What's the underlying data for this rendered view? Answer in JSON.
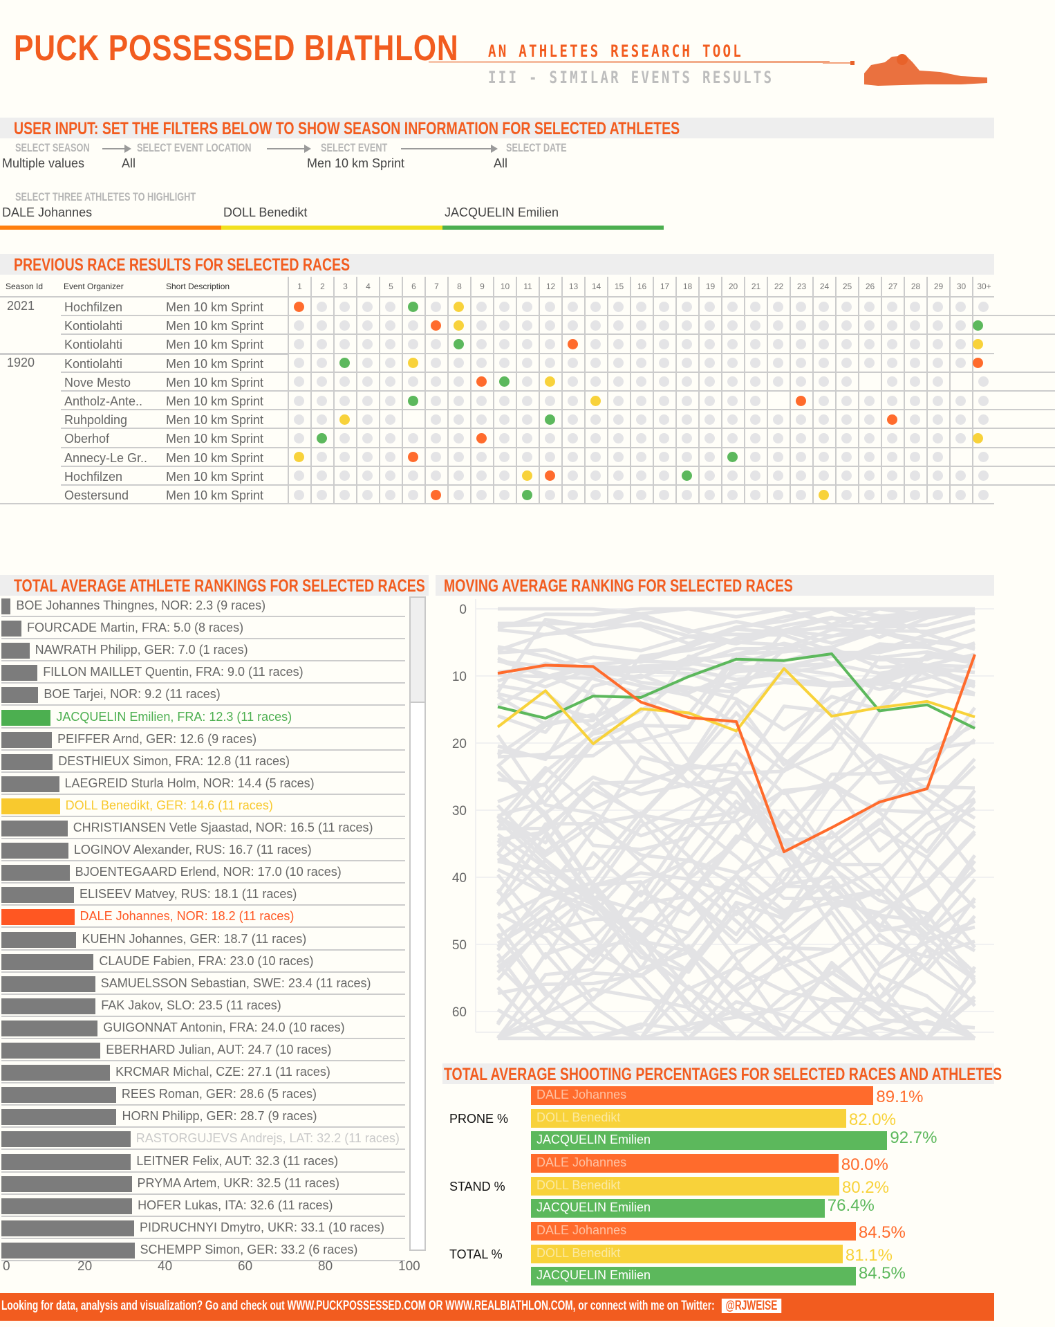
{
  "header": {
    "title": "PUCK POSSESSED BIATHLON",
    "subtitle": "AN ATHLETES RESEARCH TOOL",
    "section": "III - SIMILAR EVENTS RESULTS",
    "logo_icon": "biathlete-shooter-icon"
  },
  "filters": {
    "title": "USER INPUT: SET THE FILTERS BELOW TO SHOW  SEASON INFORMATION FOR SELECTED ATHLETES",
    "season": {
      "label": "SELECT SEASON",
      "value": "Multiple values"
    },
    "location": {
      "label": "SELECT EVENT LOCATION",
      "value": "All"
    },
    "event": {
      "label": "SELECT EVENT",
      "value": "Men 10 km Sprint"
    },
    "date": {
      "label": "SELECT DATE",
      "value": "All"
    },
    "athletes_label": "SELECT THREE ATHLETES TO HIGHLIGHT",
    "athletes": [
      {
        "name": "DALE Johannes",
        "color": "#ff7f0e"
      },
      {
        "name": "DOLL Benedikt",
        "color": "#f2e01f"
      },
      {
        "name": "JACQUELIN Emilien",
        "color": "#4caf50"
      }
    ]
  },
  "colors": {
    "accent": "#f25c1f",
    "athlete1": "#ff6b2c",
    "athlete2": "#f8d23a",
    "athlete3": "#5cb85c",
    "neutral_dot": "#e4e4e6",
    "neutral_bar": "#7c7c7c",
    "background_line": "#e3e3e5"
  },
  "race_results": {
    "title": "PREVIOUS RACE RESULTS FOR SELECTED RACES",
    "columns": {
      "season": "Season Id",
      "organizer": "Event Organizer",
      "description": "Short Description"
    },
    "positions": [
      "1",
      "2",
      "3",
      "4",
      "5",
      "6",
      "7",
      "8",
      "9",
      "10",
      "11",
      "12",
      "13",
      "14",
      "15",
      "16",
      "17",
      "18",
      "19",
      "20",
      "21",
      "22",
      "23",
      "24",
      "25",
      "26",
      "27",
      "28",
      "29",
      "30",
      "30+"
    ],
    "rows": [
      {
        "season": "2021",
        "organizer": "Hochfilzen",
        "description": "Men 10 km Sprint",
        "dale": 1,
        "doll": 8,
        "jacquelin": 6,
        "blank": []
      },
      {
        "season": "",
        "organizer": "Kontiolahti",
        "description": "Men 10 km Sprint",
        "dale": 7,
        "doll": 8,
        "jacquelin": 31,
        "blank": []
      },
      {
        "season": "",
        "organizer": "Kontiolahti",
        "description": "Men 10 km Sprint",
        "dale": 13,
        "doll": 31,
        "jacquelin": 8,
        "blank": []
      },
      {
        "season": "1920",
        "organizer": "Kontiolahti",
        "description": "Men 10 km Sprint",
        "dale": 31,
        "doll": 6,
        "jacquelin": 3,
        "blank": []
      },
      {
        "season": "",
        "organizer": "Nove Mesto",
        "description": "Men 10 km Sprint",
        "dale": 9,
        "doll": 12,
        "jacquelin": 10,
        "blank": [
          26,
          30
        ]
      },
      {
        "season": "",
        "organizer": "Antholz-Ante..",
        "description": "Men 10 km Sprint",
        "dale": 23,
        "doll": 14,
        "jacquelin": 6,
        "blank": [
          22
        ]
      },
      {
        "season": "",
        "organizer": "Ruhpolding",
        "description": "Men 10 km Sprint",
        "dale": 27,
        "doll": 3,
        "jacquelin": 12,
        "blank": [
          6
        ]
      },
      {
        "season": "",
        "organizer": "Oberhof",
        "description": "Men 10 km Sprint",
        "dale": 9,
        "doll": 31,
        "jacquelin": 2,
        "blank": []
      },
      {
        "season": "",
        "organizer": "Annecy-Le Gr..",
        "description": "Men 10 km Sprint",
        "dale": 6,
        "doll": 1,
        "jacquelin": 20,
        "blank": [
          30
        ]
      },
      {
        "season": "",
        "organizer": "Hochfilzen",
        "description": "Men 10 km Sprint",
        "dale": 12,
        "doll": 11,
        "jacquelin": 18,
        "blank": []
      },
      {
        "season": "",
        "organizer": "Oestersund",
        "description": "Men 10 km Sprint",
        "dale": 7,
        "doll": 24,
        "jacquelin": 11,
        "blank": []
      }
    ]
  },
  "rankings": {
    "title": "TOTAL AVERAGE ATHLETE RANKINGS FOR SELECTED RACES",
    "axis_ticks": [
      "0",
      "20",
      "40",
      "60",
      "80",
      "100"
    ],
    "axis_max": 100,
    "athletes": [
      {
        "name": "BOE Johannes Thingnes",
        "nat": "NOR",
        "avg": 2.3,
        "races": 9,
        "highlight": ""
      },
      {
        "name": "FOURCADE Martin",
        "nat": "FRA",
        "avg": 5.0,
        "races": 8,
        "highlight": ""
      },
      {
        "name": "NAWRATH Philipp",
        "nat": "GER",
        "avg": 7.0,
        "races": 1,
        "highlight": ""
      },
      {
        "name": "FILLON MAILLET Quentin",
        "nat": "FRA",
        "avg": 9.0,
        "races": 11,
        "highlight": ""
      },
      {
        "name": "BOE Tarjei",
        "nat": "NOR",
        "avg": 9.2,
        "races": 11,
        "highlight": ""
      },
      {
        "name": "JACQUELIN Emilien",
        "nat": "FRA",
        "avg": 12.3,
        "races": 11,
        "highlight": "athlete3"
      },
      {
        "name": "PEIFFER Arnd",
        "nat": "GER",
        "avg": 12.6,
        "races": 9,
        "highlight": ""
      },
      {
        "name": "DESTHIEUX Simon",
        "nat": "FRA",
        "avg": 12.8,
        "races": 11,
        "highlight": ""
      },
      {
        "name": "LAEGREID Sturla Holm",
        "nat": "NOR",
        "avg": 14.4,
        "races": 5,
        "highlight": ""
      },
      {
        "name": "DOLL Benedikt",
        "nat": "GER",
        "avg": 14.6,
        "races": 11,
        "highlight": "athlete2"
      },
      {
        "name": "CHRISTIANSEN Vetle Sjaastad",
        "nat": "NOR",
        "avg": 16.5,
        "races": 11,
        "highlight": ""
      },
      {
        "name": "LOGINOV Alexander",
        "nat": "RUS",
        "avg": 16.7,
        "races": 11,
        "highlight": ""
      },
      {
        "name": "BJOENTEGAARD Erlend",
        "nat": "NOR",
        "avg": 17.0,
        "races": 10,
        "highlight": ""
      },
      {
        "name": "ELISEEV Matvey",
        "nat": "RUS",
        "avg": 18.1,
        "races": 11,
        "highlight": ""
      },
      {
        "name": "DALE Johannes",
        "nat": "NOR",
        "avg": 18.2,
        "races": 11,
        "highlight": "athlete1"
      },
      {
        "name": "KUEHN Johannes",
        "nat": "GER",
        "avg": 18.7,
        "races": 11,
        "highlight": ""
      },
      {
        "name": "CLAUDE Fabien",
        "nat": "FRA",
        "avg": 23.0,
        "races": 10,
        "highlight": ""
      },
      {
        "name": "SAMUELSSON Sebastian",
        "nat": "SWE",
        "avg": 23.4,
        "races": 11,
        "highlight": ""
      },
      {
        "name": "FAK Jakov",
        "nat": "SLO",
        "avg": 23.5,
        "races": 11,
        "highlight": ""
      },
      {
        "name": "GUIGONNAT Antonin",
        "nat": "FRA",
        "avg": 24.0,
        "races": 10,
        "highlight": ""
      },
      {
        "name": "EBERHARD Julian",
        "nat": "AUT",
        "avg": 24.7,
        "races": 10,
        "highlight": ""
      },
      {
        "name": "KRCMAR Michal",
        "nat": "CZE",
        "avg": 27.1,
        "races": 11,
        "highlight": ""
      },
      {
        "name": "REES Roman",
        "nat": "GER",
        "avg": 28.6,
        "races": 5,
        "highlight": ""
      },
      {
        "name": "HORN Philipp",
        "nat": "GER",
        "avg": 28.7,
        "races": 9,
        "highlight": ""
      },
      {
        "name": "RASTORGUJEVS Andrejs",
        "nat": "LAT",
        "avg": 32.2,
        "races": 11,
        "highlight": "faded"
      },
      {
        "name": "LEITNER Felix",
        "nat": "AUT",
        "avg": 32.3,
        "races": 11,
        "highlight": ""
      },
      {
        "name": "PRYMA Artem",
        "nat": "UKR",
        "avg": 32.5,
        "races": 11,
        "highlight": ""
      },
      {
        "name": "HOFER Lukas",
        "nat": "ITA",
        "avg": 32.6,
        "races": 11,
        "highlight": ""
      },
      {
        "name": "PIDRUCHNYI Dmytro",
        "nat": "UKR",
        "avg": 33.1,
        "races": 10,
        "highlight": ""
      },
      {
        "name": "SCHEMPP Simon",
        "nat": "GER",
        "avg": 33.2,
        "races": 6,
        "highlight": ""
      }
    ]
  },
  "moving_average": {
    "title": "MOVING AVERAGE RANKING FOR SELECTED RACES"
  },
  "shooting": {
    "title": "TOTAL AVERAGE SHOOTING PERCENTAGES FOR SELECTED RACES AND ATHLETES"
  },
  "chart_data": [
    {
      "type": "line",
      "title": "MOVING AVERAGE RANKING FOR SELECTED RACES",
      "xlabel": "",
      "ylabel": "",
      "ylim": [
        0,
        65
      ],
      "y_inverted": true,
      "yticks": [
        "0",
        "10",
        "20",
        "30",
        "40",
        "50",
        "60"
      ],
      "grid": true,
      "x": [
        1,
        2,
        3,
        4,
        5,
        6,
        7,
        8,
        9,
        10,
        11
      ],
      "series": [
        {
          "name": "DALE Johannes",
          "color_key": "athlete1",
          "values": [
            9.6,
            8.4,
            8.6,
            13.9,
            16.2,
            16.8,
            36.2,
            32.6,
            28.8,
            26.8,
            6.8
          ]
        },
        {
          "name": "DOLL Benedikt",
          "color_key": "athlete2",
          "values": [
            17.6,
            12.2,
            20.1,
            14.9,
            15.5,
            18.2,
            8.9,
            16.0,
            14.7,
            13.8,
            16.1
          ]
        },
        {
          "name": "JACQUELIN Emilien",
          "color_key": "athlete3",
          "values": [
            14.6,
            16.3,
            13.0,
            13.2,
            10.1,
            7.5,
            7.7,
            6.7,
            15.2,
            14.3,
            17.8
          ]
        }
      ],
      "background_series_note": "many other athletes drawn as light grey lines"
    },
    {
      "type": "bar",
      "title": "TOTAL AVERAGE SHOOTING PERCENTAGES FOR SELECTED RACES AND ATHLETES",
      "orientation": "horizontal",
      "categories": [
        "PRONE %",
        "STAND %",
        "TOTAL %"
      ],
      "xlim": [
        0,
        100
      ],
      "series": [
        {
          "name": "DALE Johannes",
          "color_key": "athlete1",
          "values": [
            89.1,
            80.0,
            84.5
          ],
          "labels": [
            "89.1%",
            "80.0%",
            "84.5%"
          ]
        },
        {
          "name": "DOLL Benedikt",
          "color_key": "athlete2",
          "values": [
            82.0,
            80.2,
            81.1
          ],
          "labels": [
            "82.0%",
            "80.2%",
            "81.1%"
          ]
        },
        {
          "name": "JACQUELIN Emilien",
          "color_key": "athlete3",
          "values": [
            92.7,
            76.4,
            84.5
          ],
          "labels": [
            "92.7%",
            "76.4%",
            "84.5%"
          ]
        }
      ]
    }
  ],
  "footer": {
    "text": "Looking for data, analysis and visualization? Go and check out WWW.PUCKPOSSESSED.COM OR WWW.REALBIATHLON.COM, or connect with me on Twitter:",
    "handle": "@RJWEISE"
  }
}
